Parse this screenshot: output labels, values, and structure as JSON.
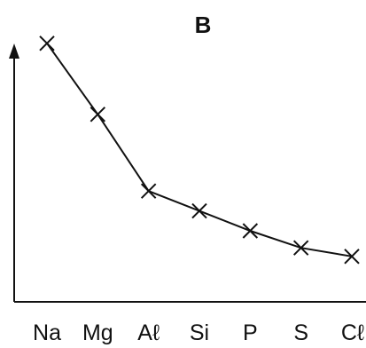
{
  "chart_data": {
    "type": "line",
    "title": "B",
    "xlabel": "",
    "ylabel": "",
    "categories": [
      "Na",
      "Mg",
      "Aℓ",
      "Si",
      "P",
      "S",
      "Cℓ"
    ],
    "series": [
      {
        "values": [
          0.91,
          0.66,
          0.39,
          0.32,
          0.25,
          0.19,
          0.16
        ]
      }
    ],
    "ylim": [
      0,
      1
    ],
    "y_ticks_shown": false,
    "grid": false,
    "marker": "x",
    "line_color": "#111111"
  }
}
